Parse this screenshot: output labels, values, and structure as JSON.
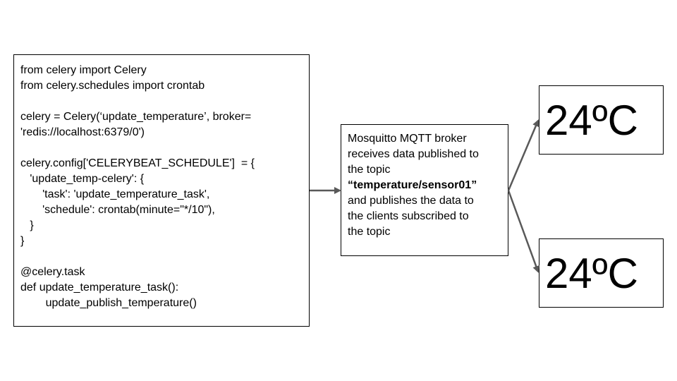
{
  "code_block": {
    "lines": [
      "from celery import Celery",
      "from celery.schedules import crontab",
      "",
      "celery = Celery(‘update_temperature’, broker=",
      "'redis://localhost:6379/0')",
      "",
      "celery.config['CELERYBEAT_SCHEDULE']  = {",
      "   'update_temp-celery': {",
      "       'task': 'update_temperature_task',",
      "       'schedule': crontab(minute=\"*/10\"),",
      "   }",
      "}",
      "",
      "@celery.task",
      "def update_temperature_task():",
      "        update_publish_temperature()"
    ]
  },
  "broker": {
    "line1": "Mosquitto MQTT broker",
    "line2": "receives data published to",
    "line3": "the topic",
    "topic": "“temperature/sensor01”",
    "line5": "and publishes the data to",
    "line6": "the clients subscribed to",
    "line7": "the topic"
  },
  "clients": [
    {
      "temperature": "24ºC"
    },
    {
      "temperature": "24ºC"
    }
  ],
  "colors": {
    "arrow": "#595959",
    "border": "#000000"
  }
}
